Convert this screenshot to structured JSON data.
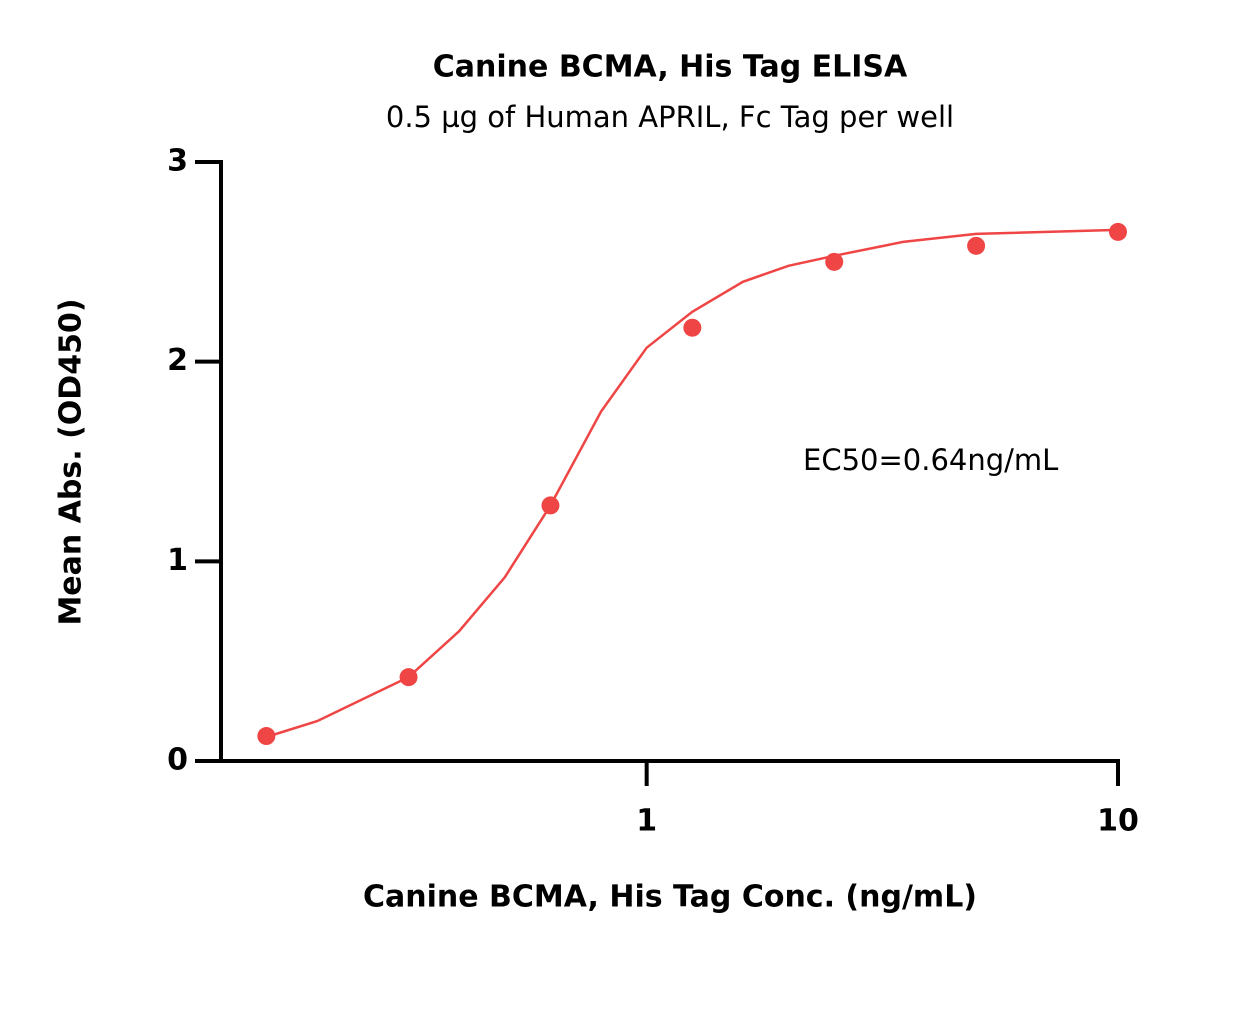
{
  "chart_data": {
    "type": "scatter",
    "title": "Canine BCMA, His Tag ELISA",
    "subtitle": "0.5 µg of Human APRIL, Fc Tag per well",
    "x_label": "Canine BCMA, His Tag Conc. (ng/mL)",
    "y_label": "Mean Abs. (OD450)",
    "annotation": "EC50=0.64ng/mL",
    "x_scale": "log",
    "xlim": [
      0.125,
      10
    ],
    "xticks": [
      1,
      10
    ],
    "ylim": [
      0,
      3
    ],
    "yticks": [
      0,
      1,
      2,
      3
    ],
    "color": "#ef4545",
    "x": [
      0.156,
      0.3125,
      0.625,
      1.25,
      2.5,
      5,
      10
    ],
    "values": [
      0.125,
      0.42,
      1.28,
      2.17,
      2.5,
      2.58,
      2.65
    ],
    "fit": {
      "x": [
        0.156,
        0.2,
        0.3125,
        0.4,
        0.5,
        0.625,
        0.8,
        1,
        1.25,
        1.6,
        2,
        2.5,
        3.5,
        5,
        10
      ],
      "values": [
        0.12,
        0.2,
        0.42,
        0.65,
        0.92,
        1.28,
        1.75,
        2.07,
        2.25,
        2.4,
        2.48,
        2.53,
        2.6,
        2.64,
        2.66
      ]
    }
  }
}
